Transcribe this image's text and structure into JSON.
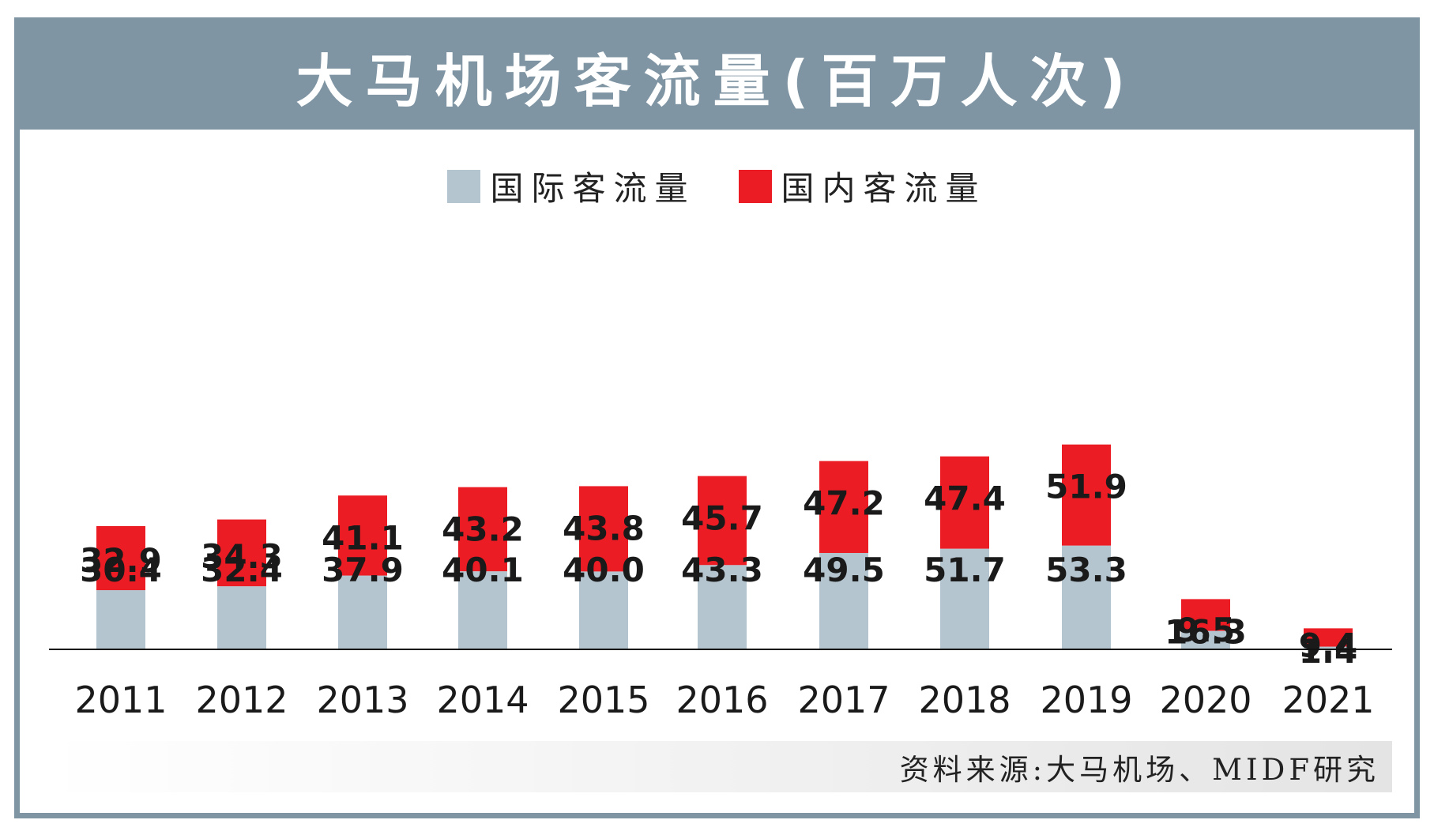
{
  "title": "大马机场客流量(百万人次)",
  "legend": {
    "international": {
      "label": "国际客流量",
      "color": "#b4c5cf"
    },
    "domestic": {
      "label": "国内客流量",
      "color": "#ec1c24"
    }
  },
  "source": "资料来源:大马机场、MIDF研究",
  "chart_data": {
    "type": "bar",
    "stacked": true,
    "categories": [
      "2011",
      "2012",
      "2013",
      "2014",
      "2015",
      "2016",
      "2017",
      "2018",
      "2019",
      "2020",
      "2021"
    ],
    "series": [
      {
        "name": "国际客流量",
        "color": "#b4c5cf",
        "values": [
          30.4,
          32.4,
          37.9,
          40.1,
          40.0,
          43.3,
          49.5,
          51.7,
          53.3,
          9.5,
          1.4
        ]
      },
      {
        "name": "国内客流量",
        "color": "#ec1c24",
        "values": [
          32.9,
          34.3,
          41.1,
          43.2,
          43.8,
          45.7,
          47.2,
          47.4,
          51.9,
          16.3,
          9.4
        ]
      }
    ],
    "title": "大马机场客流量(百万人次)",
    "legend_position": "top-center",
    "grid": false
  }
}
